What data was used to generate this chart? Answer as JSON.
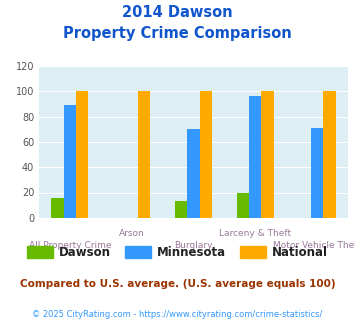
{
  "title_line1": "2014 Dawson",
  "title_line2": "Property Crime Comparison",
  "dawson": [
    16,
    0,
    13,
    20,
    0
  ],
  "minnesota": [
    89,
    0,
    70,
    96,
    71
  ],
  "national": [
    100,
    100,
    100,
    100,
    100
  ],
  "bar_colors": {
    "dawson": "#66bb00",
    "minnesota": "#3399ff",
    "national": "#ffaa00"
  },
  "ylim": [
    0,
    120
  ],
  "yticks": [
    0,
    20,
    40,
    60,
    80,
    100,
    120
  ],
  "legend_labels": [
    "Dawson",
    "Minnesota",
    "National"
  ],
  "top_labels": [
    [
      1,
      "Arson"
    ],
    [
      3,
      "Larceny & Theft"
    ]
  ],
  "bot_labels": [
    [
      0,
      "All Property Crime"
    ],
    [
      2,
      "Burglary"
    ],
    [
      4,
      "Motor Vehicle Theft"
    ]
  ],
  "footnote1": "Compared to U.S. average. (U.S. average equals 100)",
  "footnote2": "© 2025 CityRating.com - https://www.cityrating.com/crime-statistics/",
  "title_color": "#1155cc",
  "axis_bg_color": "#ddeef5",
  "label_color": "#997799",
  "footnote1_color": "#993300",
  "footnote2_color": "#3399ff"
}
